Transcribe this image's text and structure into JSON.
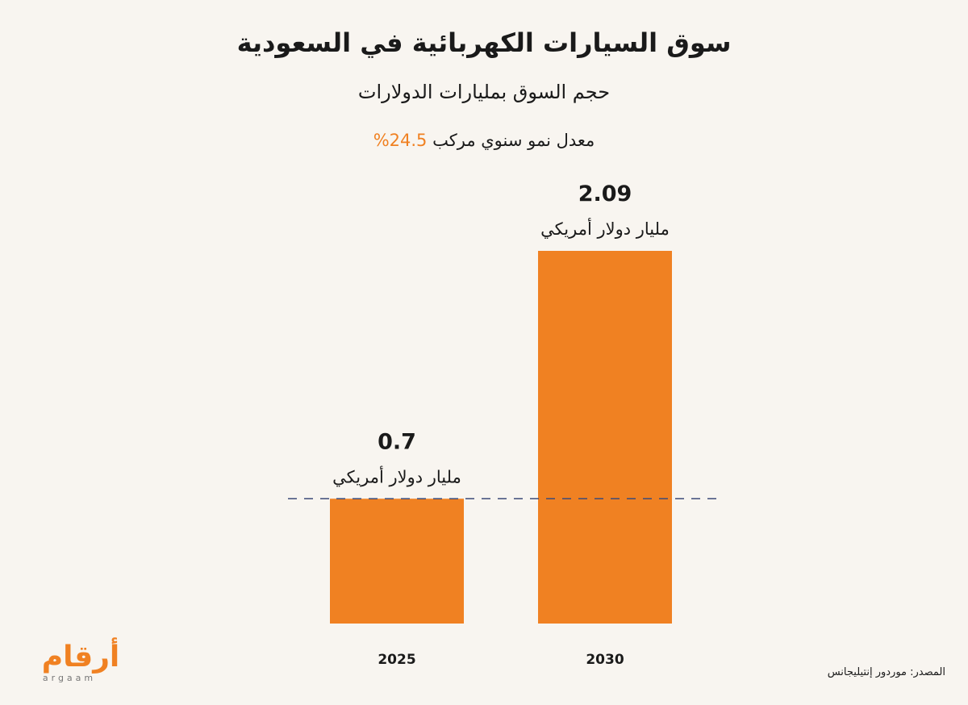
{
  "title": "سوق السيارات الكهربائية في السعودية",
  "subtitle": "حجم السوق بمليارات الدولارات",
  "cagr": {
    "label": "معدل نمو سنوي مركب",
    "value": "24.5%"
  },
  "source": "المصدر: موردور إنتيليجانس",
  "logo": {
    "arabic": "أرقام",
    "latin": "argaam"
  },
  "colors": {
    "bar": "#f08122",
    "accent": "#f08122",
    "reference_line": "#3d4a78",
    "background": "#f8f5f0",
    "text": "#1a1a1a"
  },
  "chart_data": {
    "type": "bar",
    "categories": [
      "2025",
      "2030"
    ],
    "values": [
      0.7,
      2.09
    ],
    "value_labels": [
      "0.7",
      "2.09"
    ],
    "unit_label": "مليار دولار أمريكي",
    "reference_line": {
      "value": 0.7,
      "style": "dashed"
    },
    "ylim": [
      0,
      2.09
    ],
    "grid": false,
    "legend": "none"
  }
}
